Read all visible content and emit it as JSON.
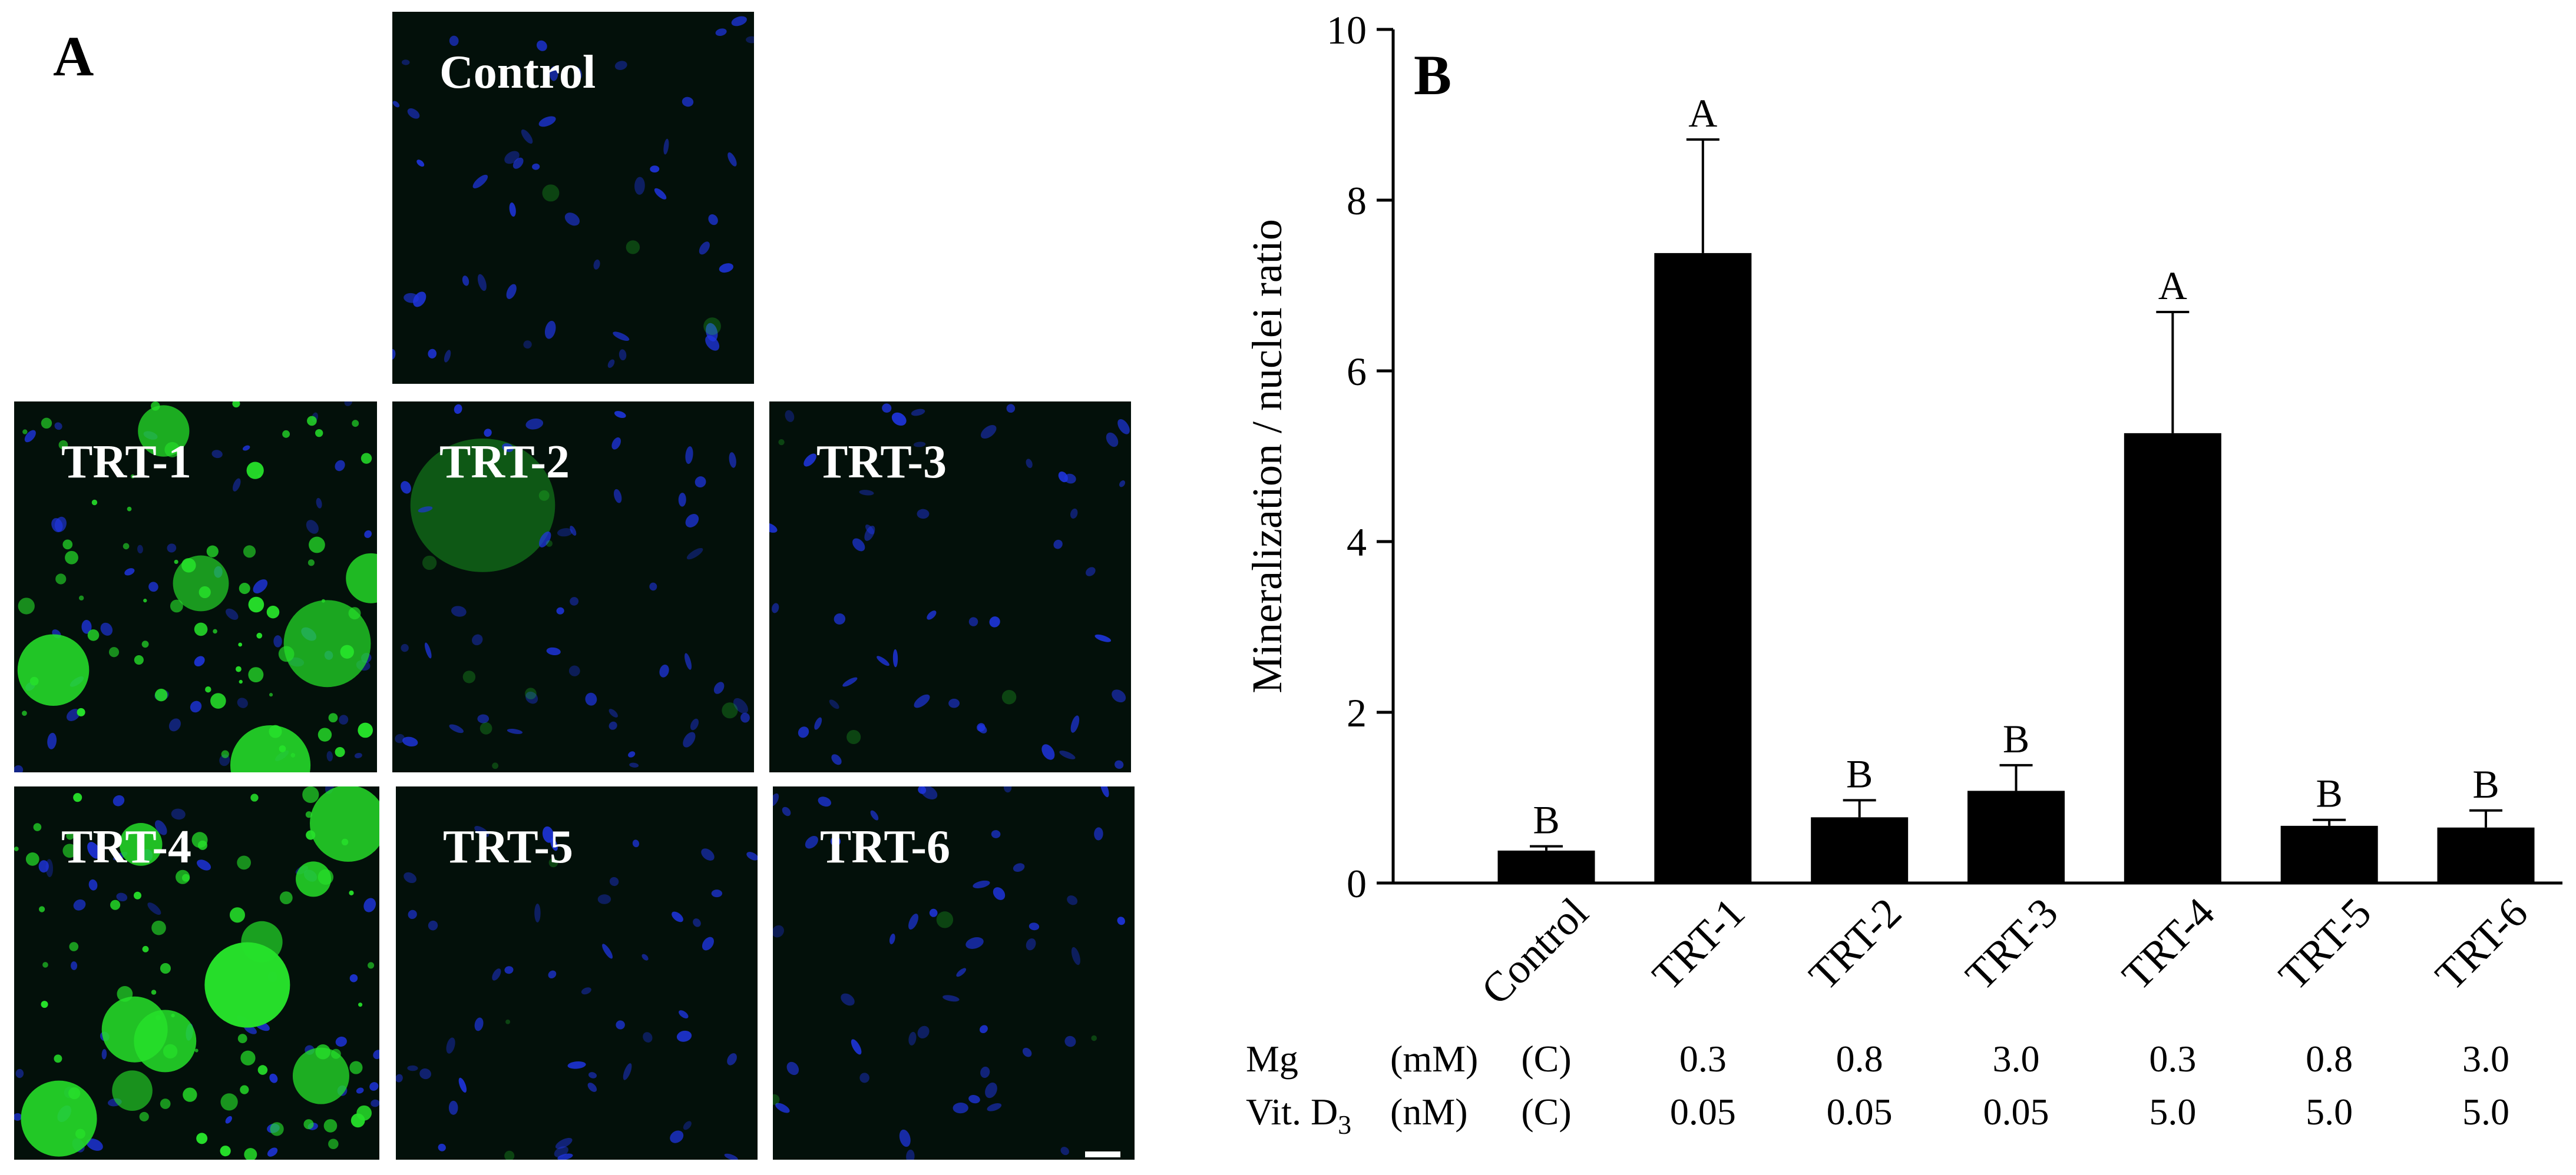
{
  "panel_a": {
    "label": "A",
    "images": [
      {
        "id": "control",
        "label": "Control",
        "green": "low"
      },
      {
        "id": "trt1",
        "label": "TRT-1",
        "green": "high"
      },
      {
        "id": "trt2",
        "label": "TRT-2",
        "green": "diffuse"
      },
      {
        "id": "trt3",
        "label": "TRT-3",
        "green": "low"
      },
      {
        "id": "trt4",
        "label": "TRT-4",
        "green": "high"
      },
      {
        "id": "trt5",
        "label": "TRT-5",
        "green": "low"
      },
      {
        "id": "trt6",
        "label": "TRT-6",
        "green": "low"
      }
    ],
    "colors": {
      "nuclei": "#1f35e0",
      "mineral": "#26e02a",
      "background": "#03100a"
    }
  },
  "panel_b": {
    "label": "B"
  },
  "chart_data": {
    "type": "bar",
    "categories": [
      "Control",
      "TRT-1",
      "TRT-2",
      "TRT-3",
      "TRT-4",
      "TRT-5",
      "TRT-6"
    ],
    "values": [
      0.38,
      7.38,
      0.77,
      1.08,
      5.27,
      0.67,
      0.65
    ],
    "errors": [
      0.05,
      1.33,
      0.2,
      0.3,
      1.42,
      0.07,
      0.2
    ],
    "significance": [
      "B",
      "A",
      "B",
      "B",
      "A",
      "B",
      "B"
    ],
    "ylabel": "Mineralization / nuclei ratio",
    "ylim": [
      0,
      10
    ],
    "yticks": [
      0,
      2,
      4,
      6,
      8,
      10
    ],
    "bar_color": "#000000",
    "grid": false,
    "treatment_table": {
      "rows": [
        {
          "name": "Mg",
          "unit": "(mM)",
          "values": [
            "(C)",
            "0.3",
            "0.8",
            "3.0",
            "0.3",
            "0.8",
            "3.0"
          ]
        },
        {
          "name": "Vit. D",
          "subscript": "3",
          "unit": "(nM)",
          "values": [
            "(C)",
            "0.05",
            "0.05",
            "0.05",
            "5.0",
            "5.0",
            "5.0"
          ]
        }
      ]
    }
  }
}
